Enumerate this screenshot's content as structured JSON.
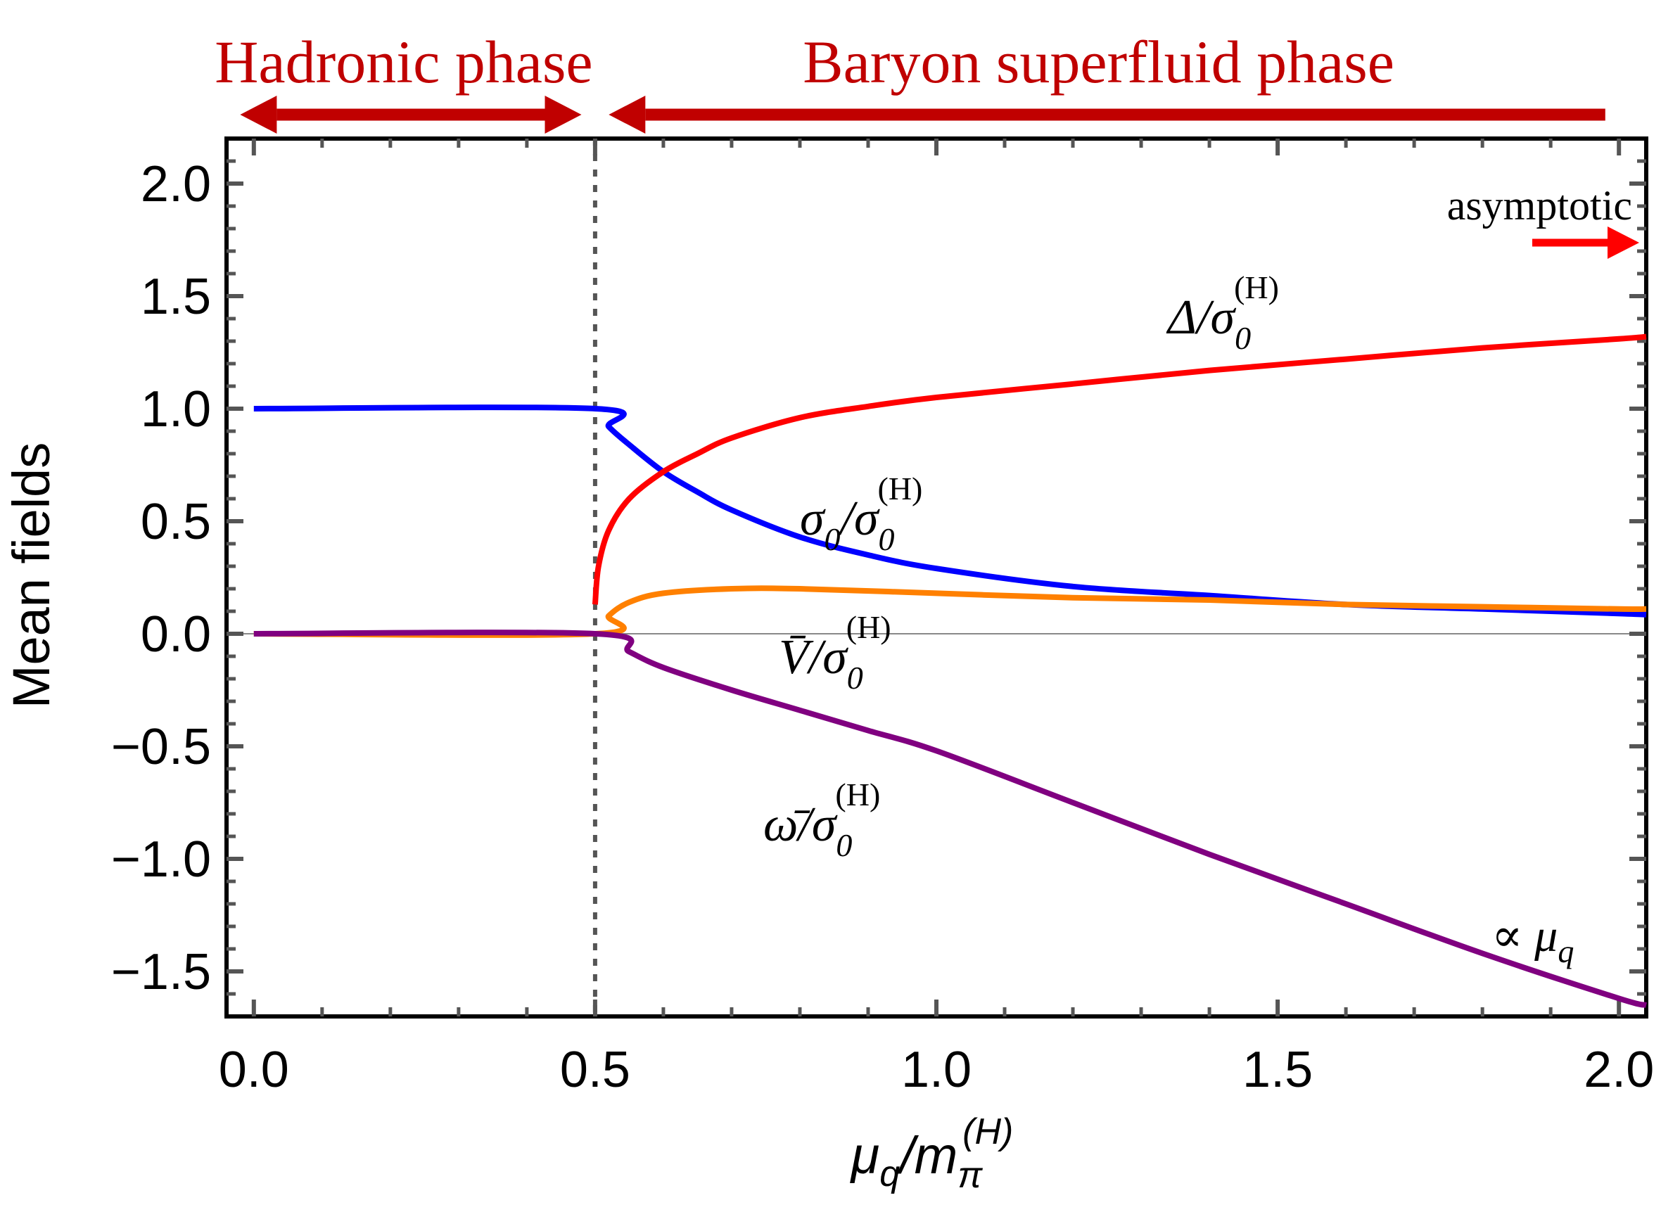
{
  "chart_data": {
    "type": "line",
    "xlabel": "μq/mπ(H)",
    "ylabel": "Mean fields",
    "xlim": [
      -0.04,
      2.04
    ],
    "ylim": [
      -1.7,
      2.2
    ],
    "x_ticks": [
      "0.0",
      "0.5",
      "1.0",
      "1.5",
      "2.0"
    ],
    "y_ticks": [
      "2.0",
      "1.5",
      "1.0",
      "0.5",
      "0.0",
      "−0.5",
      "−1.0",
      "−1.5"
    ],
    "zero_line": true,
    "critical_line_x": 0.5,
    "phases": [
      {
        "label": "Hadronic phase",
        "x_range": [
          -0.02,
          0.48
        ],
        "color": "#c00000"
      },
      {
        "label": "Baryon superfluid phase",
        "x_range": [
          0.52,
          1.98
        ],
        "color": "#c00000"
      }
    ],
    "asymptotic_label": "asymptotic",
    "series": [
      {
        "name": "σ0/σ0(H)",
        "color": "#0000ff",
        "points": [
          [
            0.0,
            1.0
          ],
          [
            0.5,
            1.0
          ],
          [
            0.52,
            0.92
          ],
          [
            0.55,
            0.84
          ],
          [
            0.6,
            0.72
          ],
          [
            0.65,
            0.63
          ],
          [
            0.7,
            0.55
          ],
          [
            0.8,
            0.43
          ],
          [
            0.9,
            0.35
          ],
          [
            1.0,
            0.29
          ],
          [
            1.2,
            0.21
          ],
          [
            1.4,
            0.17
          ],
          [
            1.6,
            0.13
          ],
          [
            1.8,
            0.11
          ],
          [
            2.0,
            0.09
          ],
          [
            2.04,
            0.085
          ]
        ]
      },
      {
        "name": "Δ/σ0(H)",
        "color": "#ff0000",
        "points": [
          [
            0.5,
            0.13
          ],
          [
            0.505,
            0.3
          ],
          [
            0.52,
            0.46
          ],
          [
            0.55,
            0.6
          ],
          [
            0.6,
            0.72
          ],
          [
            0.65,
            0.8
          ],
          [
            0.7,
            0.87
          ],
          [
            0.8,
            0.96
          ],
          [
            0.9,
            1.01
          ],
          [
            1.0,
            1.05
          ],
          [
            1.2,
            1.11
          ],
          [
            1.4,
            1.17
          ],
          [
            1.6,
            1.22
          ],
          [
            1.8,
            1.27
          ],
          [
            2.0,
            1.31
          ],
          [
            2.04,
            1.32
          ]
        ]
      },
      {
        "name": "V̄/σ0(H)",
        "color": "#ff8000",
        "points": [
          [
            0.0,
            0.0
          ],
          [
            0.5,
            0.0
          ],
          [
            0.52,
            0.08
          ],
          [
            0.55,
            0.14
          ],
          [
            0.6,
            0.18
          ],
          [
            0.7,
            0.2
          ],
          [
            0.8,
            0.2
          ],
          [
            1.0,
            0.18
          ],
          [
            1.2,
            0.16
          ],
          [
            1.4,
            0.15
          ],
          [
            1.6,
            0.13
          ],
          [
            1.8,
            0.12
          ],
          [
            2.0,
            0.11
          ],
          [
            2.04,
            0.11
          ]
        ]
      },
      {
        "name": "ω̄/σ0(H)",
        "color": "#800080",
        "points": [
          [
            0.0,
            0.0
          ],
          [
            0.5,
            0.0
          ],
          [
            0.55,
            -0.08
          ],
          [
            0.6,
            -0.15
          ],
          [
            0.7,
            -0.25
          ],
          [
            0.8,
            -0.34
          ],
          [
            0.9,
            -0.43
          ],
          [
            1.0,
            -0.52
          ],
          [
            1.2,
            -0.75
          ],
          [
            1.4,
            -0.98
          ],
          [
            1.6,
            -1.2
          ],
          [
            1.8,
            -1.42
          ],
          [
            2.0,
            -1.62
          ],
          [
            2.04,
            -1.65
          ]
        ]
      }
    ],
    "annotations": [
      {
        "text": "Δ/σ0(H)",
        "x": 1.38,
        "y": 1.45
      },
      {
        "text": "σ0/σ0(H)",
        "x": 0.82,
        "y": 0.48
      },
      {
        "text": "V̄/σ0(H)",
        "x": 0.8,
        "y": -0.12
      },
      {
        "text": "ω̄/σ0(H)",
        "x": 0.75,
        "y": -0.82
      },
      {
        "text": "∝ μq",
        "x": 1.88,
        "y": -1.4
      }
    ]
  }
}
